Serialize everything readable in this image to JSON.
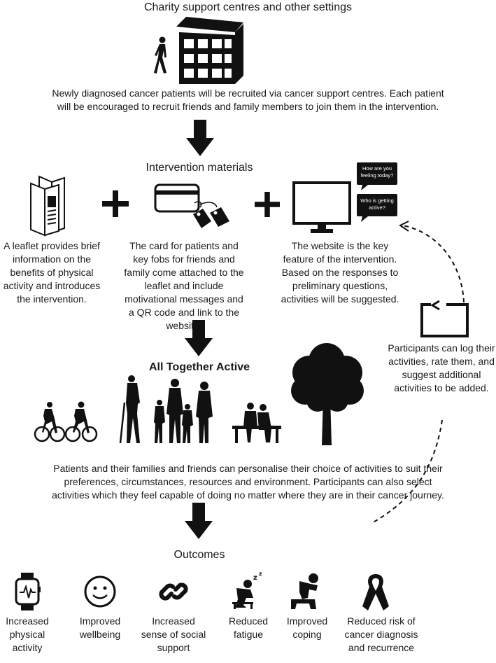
{
  "sections": {
    "charity_title": "Charity support centres and other settings",
    "recruitment_text_line1": "Newly diagnosed cancer patients will be recruited via cancer support centres. Each patient",
    "recruitment_text_line2": "will be encouraged to recruit friends and family members to join them in the intervention.",
    "materials_title": "Intervention materials",
    "leaflet_text": "A leaflet provides brief information on the benefits of physical activity and introduces the intervention.",
    "card_text": "The card for patients and key fobs for friends and family come attached to the leaflet and include motivational messages and a QR code and link to the website.",
    "website_text": "The website is the key feature of the intervention. Based on the responses to preliminary questions, activities will be suggested.",
    "bubble_1": "How are you feeling today?",
    "bubble_2": "Who is getting active?",
    "log_text": "Participants can log their activities, rate them, and suggest additional activities to be added.",
    "program_title": "All Together Active",
    "personalise_line1": "Patients and their families and friends can personalise their choice of activities to suit their",
    "personalise_line2": "preferences, circumstances, resources and environment. Participants can also select",
    "personalise_line3": "activities which they feel capable of doing no matter where they are in their cancer journey.",
    "outcomes_title": "Outcomes"
  },
  "outcomes": [
    {
      "label": "Increased physical activity",
      "icon": "smartwatch-icon"
    },
    {
      "label": "Improved wellbeing",
      "icon": "smiley-face-icon"
    },
    {
      "label": "Increased sense of social support",
      "icon": "chain-link-icon"
    },
    {
      "label": "Reduced fatigue",
      "icon": "tired-person-icon"
    },
    {
      "label": "Improved coping",
      "icon": "distressed-person-icon"
    },
    {
      "label": "Reduced risk of cancer diagnosis and recurrence",
      "icon": "cancer-ribbon-icon"
    }
  ],
  "colors": {
    "ink": "#111111",
    "background": "#ffffff"
  }
}
